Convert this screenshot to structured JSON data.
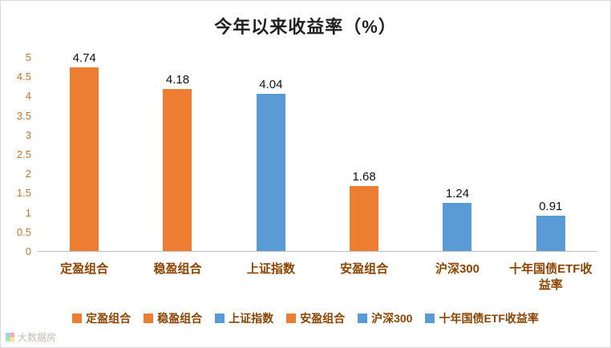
{
  "title": "今年以来收益率（%）",
  "watermark": {
    "text": "大数据房"
  },
  "chart_data": {
    "type": "bar",
    "title": "今年以来收益率（%）",
    "categories": [
      "定盈组合",
      "稳盈组合",
      "上证指数",
      "安盈组合",
      "沪深300",
      "十年国债ETF收益率"
    ],
    "values": [
      4.74,
      4.18,
      4.04,
      1.68,
      1.24,
      0.91
    ],
    "value_labels": [
      "4.74",
      "4.18",
      "4.04",
      "1.68",
      "1.24",
      "0.91"
    ],
    "bar_colors": [
      "#ED7D31",
      "#ED7D31",
      "#5B9BD5",
      "#ED7D31",
      "#5B9BD5",
      "#5B9BD5"
    ],
    "xlabel": "",
    "ylabel": "",
    "ylim": [
      0,
      5
    ],
    "ytick_step": 0.5,
    "yticks": [
      "0",
      "0.5",
      "1",
      "1.5",
      "2",
      "2.5",
      "3",
      "3.5",
      "4",
      "4.5",
      "5"
    ],
    "grid": false,
    "legend_position": "bottom",
    "legend": [
      {
        "label": "定盈组合",
        "color": "#ED7D31"
      },
      {
        "label": "稳盈组合",
        "color": "#ED7D31"
      },
      {
        "label": "上证指数",
        "color": "#5B9BD5"
      },
      {
        "label": "安盈组合",
        "color": "#ED7D31"
      },
      {
        "label": "沪深300",
        "color": "#5B9BD5"
      },
      {
        "label": "十年国债ETF收益率",
        "color": "#5B9BD5"
      }
    ],
    "colors": {
      "orange": "#ED7D31",
      "blue": "#5B9BD5",
      "axis_tick": "#C07632",
      "category_label": "#8C4400"
    }
  }
}
